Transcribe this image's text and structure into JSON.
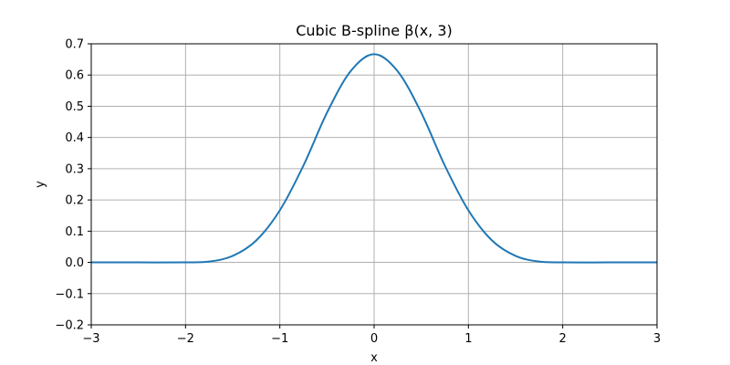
{
  "chart_data": {
    "type": "line",
    "title": "Cubic B-spline β(x, 3)",
    "xlabel": "x",
    "ylabel": "y",
    "xlim": [
      -3,
      3
    ],
    "ylim": [
      -0.2,
      0.7
    ],
    "grid": true,
    "xticks": [
      -3,
      -2,
      -1,
      0,
      1,
      2,
      3
    ],
    "xtick_labels": [
      "−3",
      "−2",
      "−1",
      "0",
      "1",
      "2",
      "3"
    ],
    "yticks": [
      -0.2,
      -0.1,
      0.0,
      0.1,
      0.2,
      0.3,
      0.4,
      0.5,
      0.6,
      0.7
    ],
    "ytick_labels": [
      "−0.2",
      "−0.1",
      "0.0",
      "0.1",
      "0.2",
      "0.3",
      "0.4",
      "0.5",
      "0.6",
      "0.7"
    ],
    "series": [
      {
        "color": "#1f77b4",
        "x": [
          -3,
          -2.5,
          -2,
          -1.75,
          -1.5,
          -1.25,
          -1,
          -0.75,
          -0.5,
          -0.25,
          0,
          0.25,
          0.5,
          0.75,
          1,
          1.25,
          1.5,
          1.75,
          2,
          2.5,
          3
        ],
        "y": [
          0,
          0,
          0,
          0.0026,
          0.0208,
          0.0703,
          0.1667,
          0.3099,
          0.4792,
          0.612,
          0.6667,
          0.612,
          0.4792,
          0.3099,
          0.1667,
          0.0703,
          0.0208,
          0.0026,
          0,
          0,
          0
        ]
      }
    ]
  }
}
